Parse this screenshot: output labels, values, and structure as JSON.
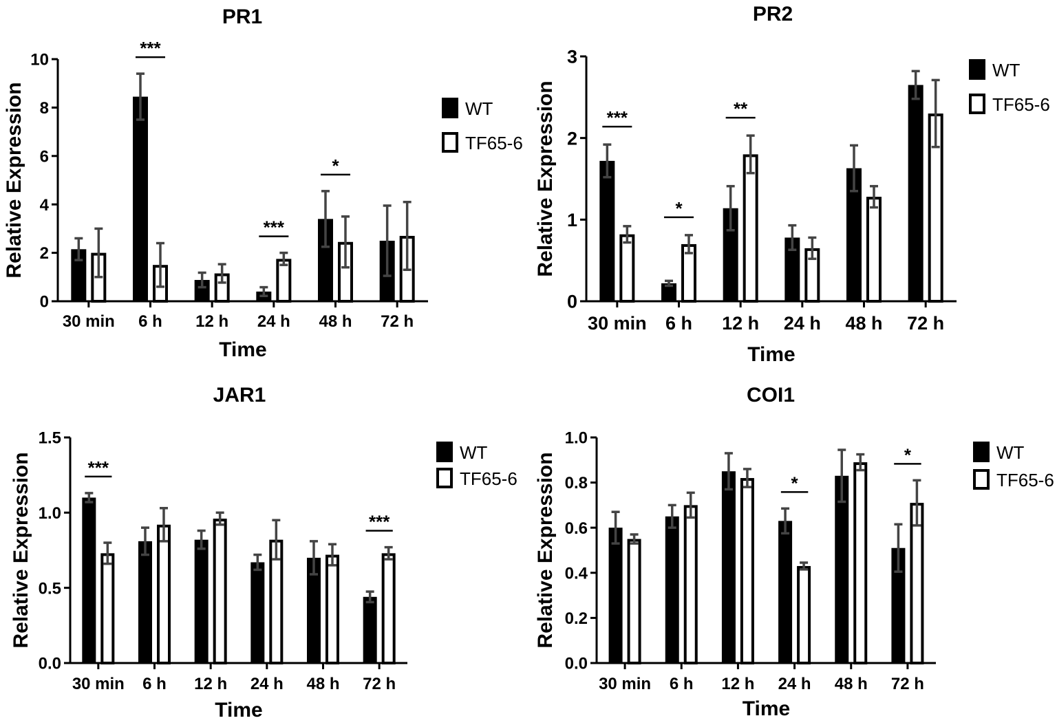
{
  "figure": {
    "legend": {
      "wt": "WT",
      "tf": "TF65-6"
    }
  },
  "chart_data": [
    {
      "type": "bar",
      "title": "PR1",
      "xlabel": "Time",
      "ylabel": "Relative Expression",
      "categories": [
        "30 min",
        "6 h",
        "12 h",
        "24 h",
        "48 h",
        "72 h"
      ],
      "ylim": [
        0,
        10
      ],
      "yticks": [
        0,
        2,
        4,
        6,
        8,
        10
      ],
      "series": [
        {
          "name": "WT",
          "values": [
            2.15,
            8.45,
            0.88,
            0.4,
            3.4,
            2.5
          ],
          "errors": [
            0.45,
            0.95,
            0.3,
            0.18,
            1.15,
            1.45
          ]
        },
        {
          "name": "TF65-6",
          "values": [
            2.0,
            1.5,
            1.15,
            1.75,
            2.45,
            2.7
          ],
          "errors": [
            1.0,
            0.9,
            0.38,
            0.25,
            1.05,
            1.4
          ]
        }
      ],
      "significance": [
        {
          "category": 1,
          "label": "***"
        },
        {
          "category": 3,
          "label": "***"
        },
        {
          "category": 4,
          "label": "*"
        }
      ]
    },
    {
      "type": "bar",
      "title": "PR2",
      "xlabel": "Time",
      "ylabel": "Relative Expression",
      "categories": [
        "30 min",
        "6 h",
        "12 h",
        "24 h",
        "48 h",
        "72 h"
      ],
      "ylim": [
        0,
        3
      ],
      "yticks": [
        0,
        1,
        2,
        3
      ],
      "series": [
        {
          "name": "WT",
          "values": [
            1.72,
            0.22,
            1.14,
            0.78,
            1.63,
            2.65
          ],
          "errors": [
            0.2,
            0.03,
            0.27,
            0.15,
            0.28,
            0.17
          ]
        },
        {
          "name": "TF65-6",
          "values": [
            0.82,
            0.7,
            1.8,
            0.65,
            1.28,
            2.3
          ],
          "errors": [
            0.1,
            0.11,
            0.23,
            0.13,
            0.13,
            0.41
          ]
        }
      ],
      "significance": [
        {
          "category": 0,
          "label": "***"
        },
        {
          "category": 1,
          "label": "*"
        },
        {
          "category": 2,
          "label": "**"
        }
      ]
    },
    {
      "type": "bar",
      "title": "JAR1",
      "xlabel": "Time",
      "ylabel": "Relative Expression",
      "categories": [
        "30 min",
        "6 h",
        "12 h",
        "24 h",
        "48 h",
        "72 h"
      ],
      "ylim": [
        0,
        1.5
      ],
      "yticks": [
        0,
        0.5,
        1.0,
        1.5
      ],
      "series": [
        {
          "name": "WT",
          "values": [
            1.1,
            0.81,
            0.82,
            0.67,
            0.7,
            0.44
          ],
          "errors": [
            0.03,
            0.09,
            0.06,
            0.05,
            0.11,
            0.035
          ]
        },
        {
          "name": "TF65-6",
          "values": [
            0.73,
            0.92,
            0.96,
            0.82,
            0.72,
            0.73
          ],
          "errors": [
            0.07,
            0.11,
            0.04,
            0.13,
            0.07,
            0.04
          ]
        }
      ],
      "significance": [
        {
          "category": 0,
          "label": "***"
        },
        {
          "category": 5,
          "label": "***"
        }
      ]
    },
    {
      "type": "bar",
      "title": "COI1",
      "xlabel": "Time",
      "ylabel": "Relative Expression",
      "categories": [
        "30 min",
        "6 h",
        "12 h",
        "24 h",
        "48 h",
        "72 h"
      ],
      "ylim": [
        0,
        1.0
      ],
      "yticks": [
        0.0,
        0.2,
        0.4,
        0.6,
        0.8,
        1.0
      ],
      "series": [
        {
          "name": "WT",
          "values": [
            0.6,
            0.65,
            0.85,
            0.63,
            0.83,
            0.51
          ],
          "errors": [
            0.07,
            0.05,
            0.08,
            0.055,
            0.115,
            0.105
          ]
        },
        {
          "name": "TF65-6",
          "values": [
            0.55,
            0.7,
            0.82,
            0.43,
            0.89,
            0.71
          ],
          "errors": [
            0.02,
            0.055,
            0.04,
            0.015,
            0.035,
            0.1
          ]
        }
      ],
      "significance": [
        {
          "category": 3,
          "label": "*"
        },
        {
          "category": 5,
          "label": "*"
        }
      ]
    }
  ]
}
